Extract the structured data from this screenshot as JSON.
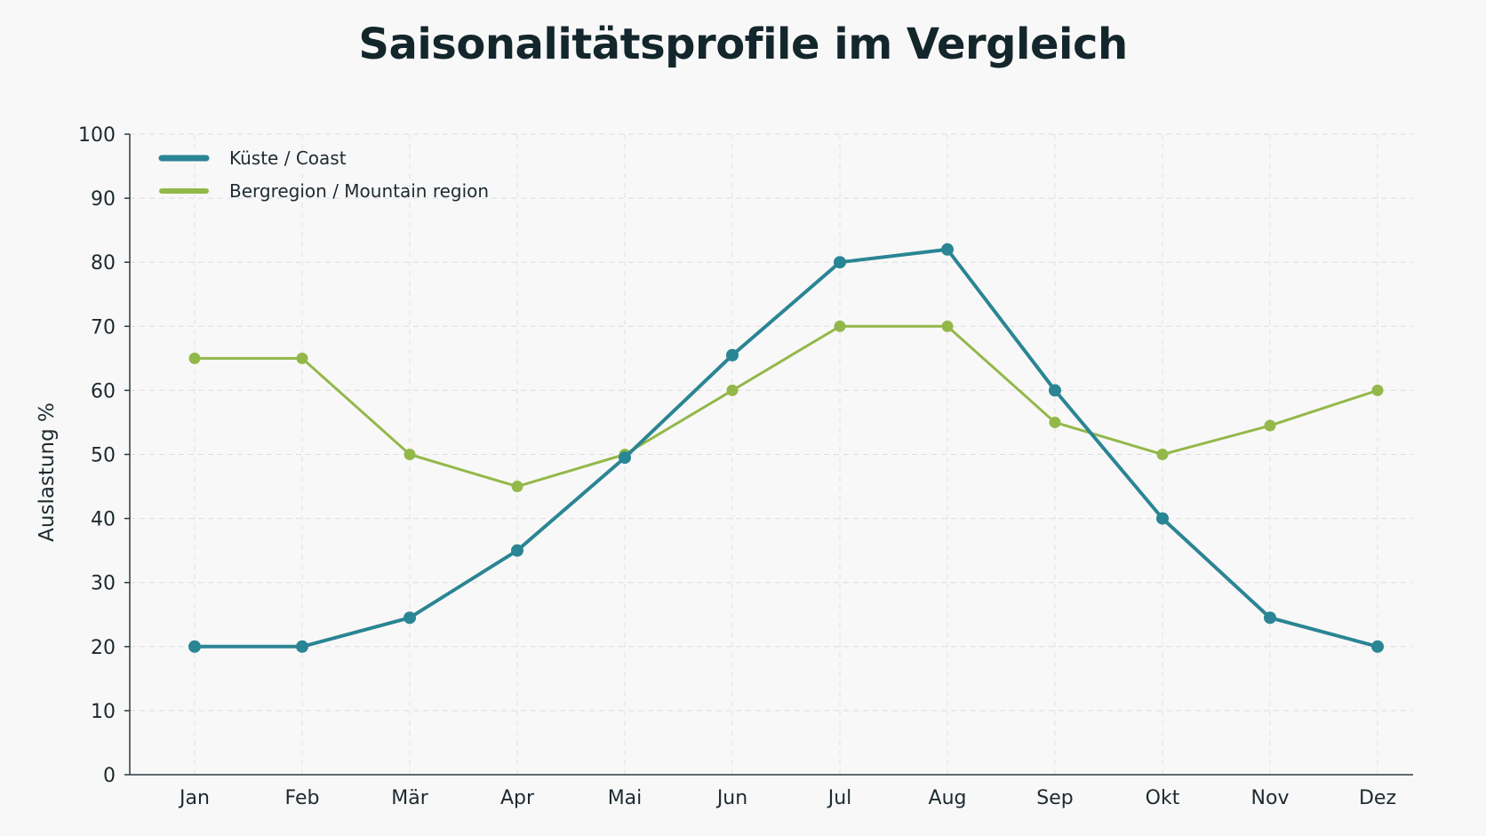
{
  "chart_data": {
    "type": "line",
    "title": "Saisonalitätsprofile im Vergleich",
    "xlabel": "",
    "ylabel": "Auslastung %",
    "categories": [
      "Jan",
      "Feb",
      "Mär",
      "Apr",
      "Mai",
      "Jun",
      "Jul",
      "Aug",
      "Sep",
      "Okt",
      "Nov",
      "Dez"
    ],
    "ylim": [
      0,
      100
    ],
    "yticks": [
      "0",
      "10",
      "20",
      "30",
      "40",
      "50",
      "60",
      "70",
      "80",
      "90",
      "100"
    ],
    "grid": true,
    "legend_position": "top-left",
    "series": [
      {
        "name": "Küste / Coast",
        "color": "#2a8594",
        "values": [
          20,
          20,
          24.5,
          35,
          49.5,
          65.5,
          80,
          82,
          60,
          40,
          24.5,
          20
        ]
      },
      {
        "name": "Bergregion / Mountain region",
        "color": "#93b84a",
        "values": [
          65,
          65,
          50,
          45,
          50,
          60,
          70,
          70,
          55,
          50,
          54.5,
          60
        ]
      }
    ]
  }
}
